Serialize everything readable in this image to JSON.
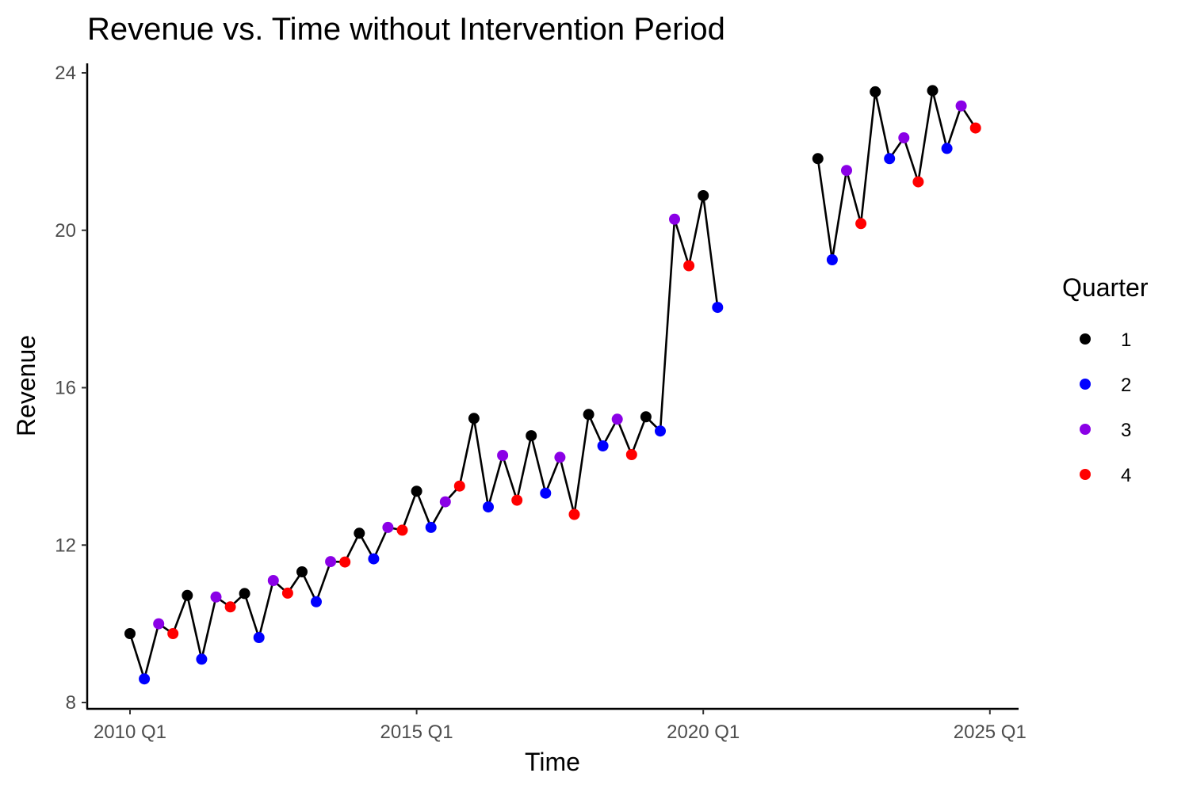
{
  "chart_data": {
    "type": "line",
    "title": "Revenue vs. Time without Intervention Period",
    "xlabel": "Time",
    "ylabel": "Revenue",
    "x_ticks": [
      "2010 Q1",
      "2015 Q1",
      "2020 Q1",
      "2025 Q1"
    ],
    "y_ticks": [
      "8",
      "12",
      "16",
      "20",
      "24"
    ],
    "ylim": [
      8,
      24
    ],
    "grid": false,
    "legend": {
      "title": "Quarter",
      "position": "right",
      "entries": [
        {
          "label": "1",
          "color": "#000000"
        },
        {
          "label": "2",
          "color": "#0000ff"
        },
        {
          "label": "3",
          "color": "#8a00e6"
        },
        {
          "label": "4",
          "color": "#ff0000"
        }
      ]
    },
    "segments": [
      {
        "x": [
          "2010 Q1",
          "2010 Q2",
          "2010 Q3",
          "2010 Q4",
          "2011 Q1",
          "2011 Q2",
          "2011 Q3",
          "2011 Q4",
          "2012 Q1",
          "2012 Q2",
          "2012 Q3",
          "2012 Q4",
          "2013 Q1",
          "2013 Q2",
          "2013 Q3",
          "2013 Q4",
          "2014 Q1",
          "2014 Q2",
          "2014 Q3",
          "2014 Q4",
          "2015 Q1",
          "2015 Q2",
          "2015 Q3",
          "2015 Q4",
          "2016 Q1",
          "2016 Q2",
          "2016 Q3",
          "2016 Q4",
          "2017 Q1",
          "2017 Q2",
          "2017 Q3",
          "2017 Q4",
          "2018 Q1",
          "2018 Q2",
          "2018 Q3",
          "2018 Q4",
          "2019 Q1",
          "2019 Q2",
          "2019 Q3",
          "2019 Q4",
          "2020 Q1",
          "2020 Q2"
        ],
        "quarter": [
          1,
          2,
          3,
          4,
          1,
          2,
          3,
          4,
          1,
          2,
          3,
          4,
          1,
          2,
          3,
          4,
          1,
          2,
          3,
          4,
          1,
          2,
          3,
          4,
          1,
          2,
          3,
          4,
          1,
          2,
          3,
          4,
          1,
          2,
          3,
          4,
          1,
          2,
          3,
          4,
          1,
          2
        ],
        "revenue": [
          9.75,
          8.6,
          10.0,
          9.75,
          10.72,
          9.1,
          10.68,
          10.43,
          10.77,
          9.65,
          11.1,
          10.78,
          11.32,
          10.56,
          11.58,
          11.57,
          12.3,
          11.65,
          12.45,
          12.38,
          13.37,
          12.45,
          13.1,
          13.5,
          15.22,
          12.97,
          14.28,
          13.14,
          14.78,
          13.32,
          14.23,
          12.78,
          15.32,
          14.52,
          15.2,
          14.3,
          15.26,
          14.9,
          20.28,
          19.1,
          20.88,
          18.04
        ]
      },
      {
        "x": [
          "2022 Q1",
          "2022 Q2",
          "2022 Q3",
          "2022 Q4",
          "2023 Q1",
          "2023 Q2",
          "2023 Q3",
          "2023 Q4",
          "2024 Q1",
          "2024 Q2",
          "2024 Q3",
          "2024 Q4"
        ],
        "quarter": [
          1,
          2,
          3,
          4,
          1,
          2,
          3,
          4,
          1,
          2,
          3,
          4
        ],
        "revenue": [
          21.82,
          19.25,
          21.52,
          20.17,
          23.52,
          21.82,
          22.35,
          21.23,
          23.55,
          22.08,
          23.16,
          22.6
        ]
      }
    ]
  }
}
